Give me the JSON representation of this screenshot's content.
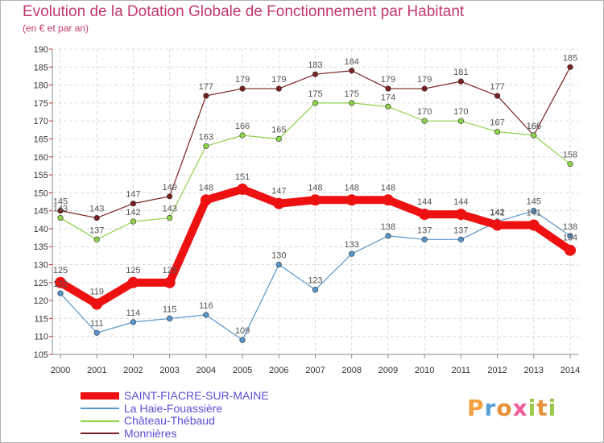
{
  "title": "Evolution de la Dotation Globale de Fonctionnement par Habitant",
  "subtitle": "(en € et par an)",
  "logo_text": "Proxiti",
  "chart_data": {
    "type": "line",
    "title": "Evolution de la Dotation Globale de Fonctionnement par Habitant",
    "subtitle": "(en € et par an)",
    "xlabel": "",
    "ylabel": "",
    "ylim": [
      105,
      190
    ],
    "y_ticks": [
      105,
      110,
      115,
      120,
      125,
      130,
      135,
      140,
      145,
      150,
      155,
      160,
      165,
      170,
      175,
      180,
      185,
      190
    ],
    "x": [
      "2000",
      "2001",
      "2002",
      "2003",
      "2004",
      "2005",
      "2006",
      "2007",
      "2008",
      "2009",
      "2010",
      "2011",
      "2012",
      "2013",
      "2014"
    ],
    "grid": true,
    "legend_position": "bottom-left",
    "series": [
      {
        "name": "Monnières",
        "color": "#7a2020",
        "values": [
          145,
          143,
          147,
          149,
          177,
          179,
          179,
          183,
          184,
          179,
          179,
          181,
          177,
          166,
          185
        ]
      },
      {
        "name": "Château-Thébaud",
        "color": "#8ed44a",
        "values": [
          143,
          137,
          142,
          143,
          163,
          166,
          165,
          175,
          175,
          174,
          170,
          170,
          167,
          166,
          158
        ]
      },
      {
        "name": "La Haie-Fouassière",
        "color": "#5596cc",
        "values": [
          122,
          111,
          114,
          115,
          116,
          109,
          130,
          123,
          133,
          138,
          137,
          137,
          142,
          145,
          138
        ]
      },
      {
        "name": "SAINT-FIACRE-SUR-MAINE",
        "color": "#ee1111",
        "values": [
          125,
          119,
          125,
          125,
          148,
          151,
          147,
          148,
          148,
          148,
          144,
          144,
          141,
          141,
          134
        ]
      }
    ],
    "legend": [
      "SAINT-FIACRE-SUR-MAINE",
      "La Haie-Fouassière",
      "Château-Thébaud",
      "Monnières"
    ]
  }
}
